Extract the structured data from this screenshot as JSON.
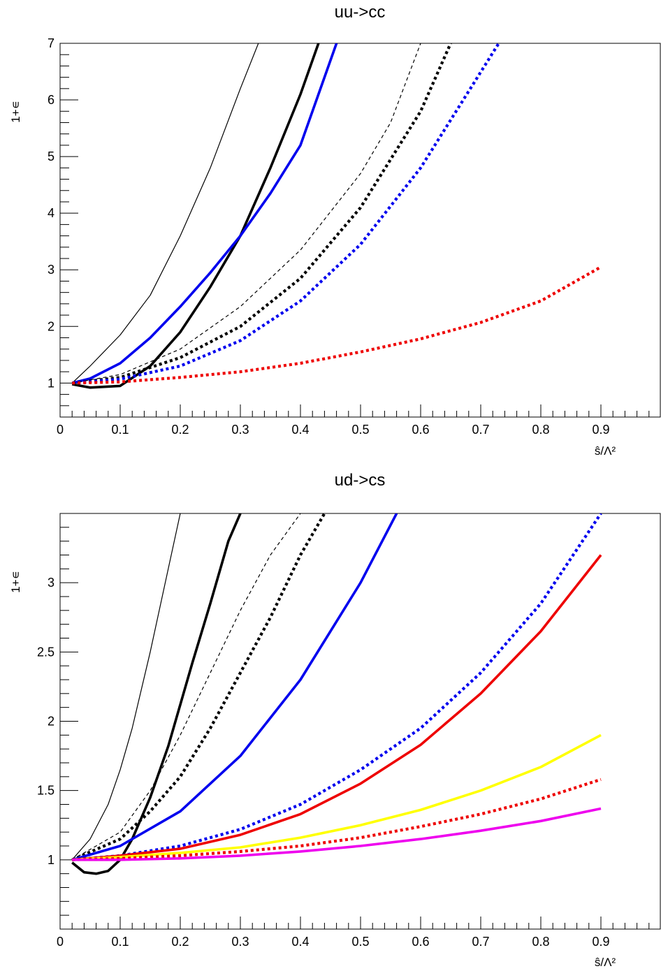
{
  "chart_data": [
    {
      "type": "line",
      "title": "uu->cc",
      "xlabel": "ŝ/Λ²",
      "ylabel": "1+∊",
      "xlim": [
        0,
        1
      ],
      "ylim": [
        0.4,
        7
      ],
      "xticks": [
        "0",
        "0.1",
        "0.2",
        "0.3",
        "0.4",
        "0.5",
        "0.6",
        "0.7",
        "0.8",
        "0.9"
      ],
      "yticks": [
        "1",
        "2",
        "3",
        "4",
        "5",
        "6",
        "7"
      ],
      "grid": false,
      "series": [
        {
          "color": "#000000",
          "style": "thin-solid",
          "x": [
            0.02,
            0.05,
            0.1,
            0.15,
            0.2,
            0.25,
            0.3,
            0.33
          ],
          "y": [
            1.0,
            1.3,
            1.85,
            2.55,
            3.6,
            4.8,
            6.2,
            7.0
          ]
        },
        {
          "color": "#000000",
          "style": "thick-solid",
          "x": [
            0.02,
            0.05,
            0.1,
            0.15,
            0.2,
            0.25,
            0.3,
            0.35,
            0.4,
            0.43
          ],
          "y": [
            0.98,
            0.92,
            0.95,
            1.3,
            1.9,
            2.7,
            3.6,
            4.8,
            6.1,
            7.0
          ]
        },
        {
          "color": "#0000ee",
          "style": "thick-solid",
          "x": [
            0.02,
            0.05,
            0.1,
            0.15,
            0.2,
            0.25,
            0.3,
            0.35,
            0.4,
            0.46
          ],
          "y": [
            1.0,
            1.08,
            1.35,
            1.8,
            2.35,
            2.95,
            3.6,
            4.35,
            5.2,
            7.0
          ]
        },
        {
          "color": "#000000",
          "style": "thin-dashed",
          "x": [
            0.02,
            0.1,
            0.2,
            0.3,
            0.4,
            0.5,
            0.55,
            0.6
          ],
          "y": [
            1.0,
            1.15,
            1.6,
            2.35,
            3.35,
            4.7,
            5.6,
            7.0
          ]
        },
        {
          "color": "#000000",
          "style": "thick-dotted",
          "x": [
            0.02,
            0.1,
            0.2,
            0.3,
            0.4,
            0.5,
            0.6,
            0.65
          ],
          "y": [
            1.0,
            1.1,
            1.45,
            2.0,
            2.85,
            4.1,
            5.8,
            7.0
          ]
        },
        {
          "color": "#0000ee",
          "style": "thick-dotted",
          "x": [
            0.02,
            0.1,
            0.2,
            0.3,
            0.4,
            0.5,
            0.6,
            0.73
          ],
          "y": [
            1.0,
            1.07,
            1.3,
            1.75,
            2.45,
            3.45,
            4.8,
            7.0
          ]
        },
        {
          "color": "#ee0000",
          "style": "thick-dotted",
          "x": [
            0.02,
            0.1,
            0.2,
            0.3,
            0.4,
            0.5,
            0.6,
            0.7,
            0.8,
            0.9
          ],
          "y": [
            1.0,
            1.02,
            1.1,
            1.2,
            1.35,
            1.55,
            1.78,
            2.07,
            2.45,
            3.05
          ]
        }
      ]
    },
    {
      "type": "line",
      "title": "ud->cs",
      "xlabel": "ŝ/Λ²",
      "ylabel": "1+∊",
      "xlim": [
        0,
        1
      ],
      "ylim": [
        0.5,
        3.5
      ],
      "xticks": [
        "0",
        "0.1",
        "0.2",
        "0.3",
        "0.4",
        "0.5",
        "0.6",
        "0.7",
        "0.8",
        "0.9"
      ],
      "yticks": [
        "1",
        "1.5",
        "2",
        "2.5",
        "3"
      ],
      "grid": false,
      "series": [
        {
          "color": "#000000",
          "style": "thin-solid",
          "x": [
            0.02,
            0.05,
            0.08,
            0.1,
            0.12,
            0.15,
            0.18,
            0.2
          ],
          "y": [
            1.0,
            1.15,
            1.4,
            1.65,
            1.95,
            2.5,
            3.1,
            3.5
          ]
        },
        {
          "color": "#000000",
          "style": "thick-solid",
          "x": [
            0.02,
            0.04,
            0.06,
            0.08,
            0.1,
            0.12,
            0.15,
            0.18,
            0.2,
            0.22,
            0.25,
            0.28,
            0.3
          ],
          "y": [
            0.98,
            0.91,
            0.9,
            0.92,
            1.0,
            1.15,
            1.45,
            1.82,
            2.12,
            2.42,
            2.85,
            3.3,
            3.5
          ]
        },
        {
          "color": "#000000",
          "style": "thin-dashed",
          "x": [
            0.02,
            0.1,
            0.15,
            0.2,
            0.25,
            0.3,
            0.35,
            0.4
          ],
          "y": [
            1.0,
            1.2,
            1.5,
            1.9,
            2.35,
            2.8,
            3.2,
            3.5
          ]
        },
        {
          "color": "#000000",
          "style": "thick-dotted",
          "x": [
            0.02,
            0.1,
            0.15,
            0.2,
            0.25,
            0.3,
            0.35,
            0.4,
            0.44
          ],
          "y": [
            1.0,
            1.15,
            1.35,
            1.6,
            1.95,
            2.35,
            2.75,
            3.2,
            3.5
          ]
        },
        {
          "color": "#0000ee",
          "style": "thick-solid",
          "x": [
            0.02,
            0.1,
            0.2,
            0.3,
            0.4,
            0.5,
            0.56
          ],
          "y": [
            1.0,
            1.1,
            1.35,
            1.75,
            2.3,
            3.0,
            3.5
          ]
        },
        {
          "color": "#0000ee",
          "style": "thick-dotted",
          "x": [
            0.02,
            0.1,
            0.2,
            0.3,
            0.4,
            0.5,
            0.6,
            0.7,
            0.8,
            0.9
          ],
          "y": [
            1.0,
            1.03,
            1.1,
            1.22,
            1.4,
            1.65,
            1.95,
            2.35,
            2.85,
            3.5
          ]
        },
        {
          "color": "#ee0000",
          "style": "thick-solid",
          "x": [
            0.02,
            0.1,
            0.2,
            0.3,
            0.4,
            0.5,
            0.6,
            0.7,
            0.8,
            0.9
          ],
          "y": [
            1.0,
            1.03,
            1.08,
            1.18,
            1.33,
            1.55,
            1.83,
            2.2,
            2.65,
            3.2
          ]
        },
        {
          "color": "#ffff00",
          "style": "thick-solid",
          "x": [
            0.02,
            0.1,
            0.2,
            0.3,
            0.4,
            0.5,
            0.6,
            0.7,
            0.8,
            0.9
          ],
          "y": [
            1.0,
            1.02,
            1.05,
            1.09,
            1.16,
            1.25,
            1.36,
            1.5,
            1.67,
            1.9
          ]
        },
        {
          "color": "#ee0000",
          "style": "thick-dotted",
          "x": [
            0.02,
            0.1,
            0.2,
            0.3,
            0.4,
            0.5,
            0.6,
            0.7,
            0.8,
            0.9
          ],
          "y": [
            1.0,
            1.01,
            1.03,
            1.06,
            1.1,
            1.16,
            1.24,
            1.33,
            1.44,
            1.58
          ]
        },
        {
          "color": "#ee00ee",
          "style": "thick-solid",
          "x": [
            0.02,
            0.1,
            0.2,
            0.3,
            0.4,
            0.5,
            0.6,
            0.7,
            0.8,
            0.9
          ],
          "y": [
            1.0,
            1.0,
            1.01,
            1.03,
            1.06,
            1.1,
            1.15,
            1.21,
            1.28,
            1.37
          ]
        }
      ]
    }
  ]
}
